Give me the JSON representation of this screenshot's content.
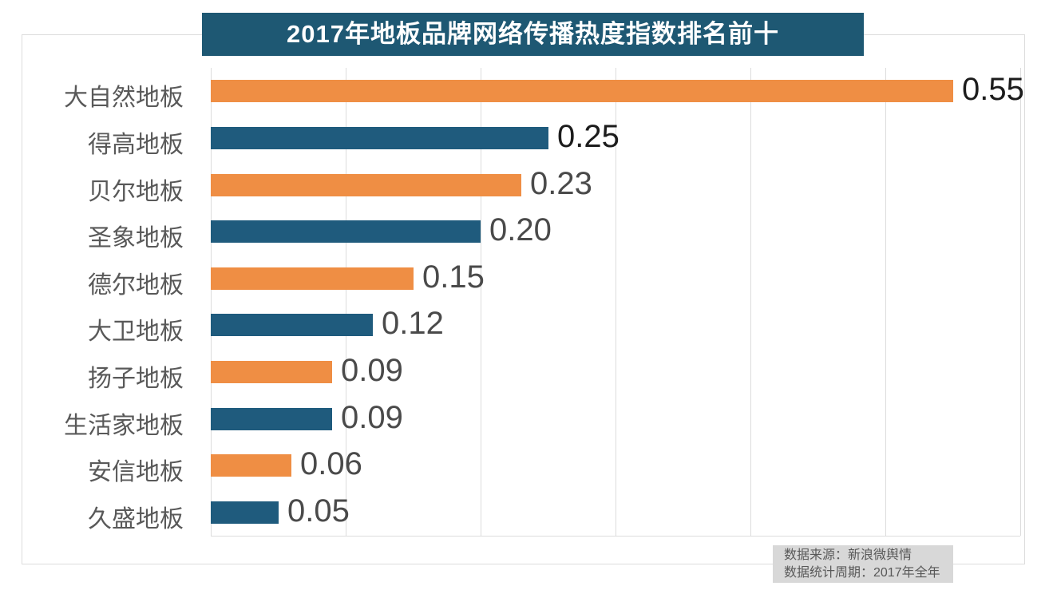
{
  "title": "2017年地板品牌网络传播热度指数排名前十",
  "source_note": {
    "line1": "数据来源：新浪微舆情",
    "line2": "数据统计周期：2017年全年"
  },
  "colors": {
    "title_bg": "#1E5873",
    "bar_orange": "#EF8E44",
    "bar_blue": "#1F5B7D",
    "grid": "#dcdcdc",
    "category_label": "#595959",
    "value_label_dark": "#1c1c1c",
    "value_label_gray": "#4a4a4a",
    "source_bg": "#d8d8d8",
    "source_text": "#595959"
  },
  "chart_data": {
    "type": "bar",
    "orientation": "horizontal",
    "title": "2017年地板品牌网络传播热度指数排名前十",
    "categories": [
      "大自然地板",
      "得高地板",
      "贝尔地板",
      "圣象地板",
      "德尔地板",
      "大卫地板",
      "扬子地板",
      "生活家地板",
      "安信地板",
      "久盛地板"
    ],
    "values": [
      0.55,
      0.25,
      0.23,
      0.2,
      0.15,
      0.12,
      0.09,
      0.09,
      0.06,
      0.05
    ],
    "value_labels": [
      "0.55",
      "0.25",
      "0.23",
      "0.20",
      "0.15",
      "0.12",
      "0.09",
      "0.09",
      "0.06",
      "0.05"
    ],
    "bar_colors": [
      "#EF8E44",
      "#1F5B7D",
      "#EF8E44",
      "#1F5B7D",
      "#EF8E44",
      "#1F5B7D",
      "#EF8E44",
      "#1F5B7D",
      "#EF8E44",
      "#1F5B7D"
    ],
    "value_label_colors": [
      "#1c1c1c",
      "#1c1c1c",
      "#4a4a4a",
      "#4a4a4a",
      "#4a4a4a",
      "#4a4a4a",
      "#4a4a4a",
      "#4a4a4a",
      "#4a4a4a",
      "#4a4a4a"
    ],
    "xlabel": "",
    "ylabel": "",
    "xlim": [
      0,
      0.6
    ],
    "grid_interval": 0.1,
    "gridlines": "vertical",
    "legend": "none",
    "data_labels": "outside-end"
  }
}
